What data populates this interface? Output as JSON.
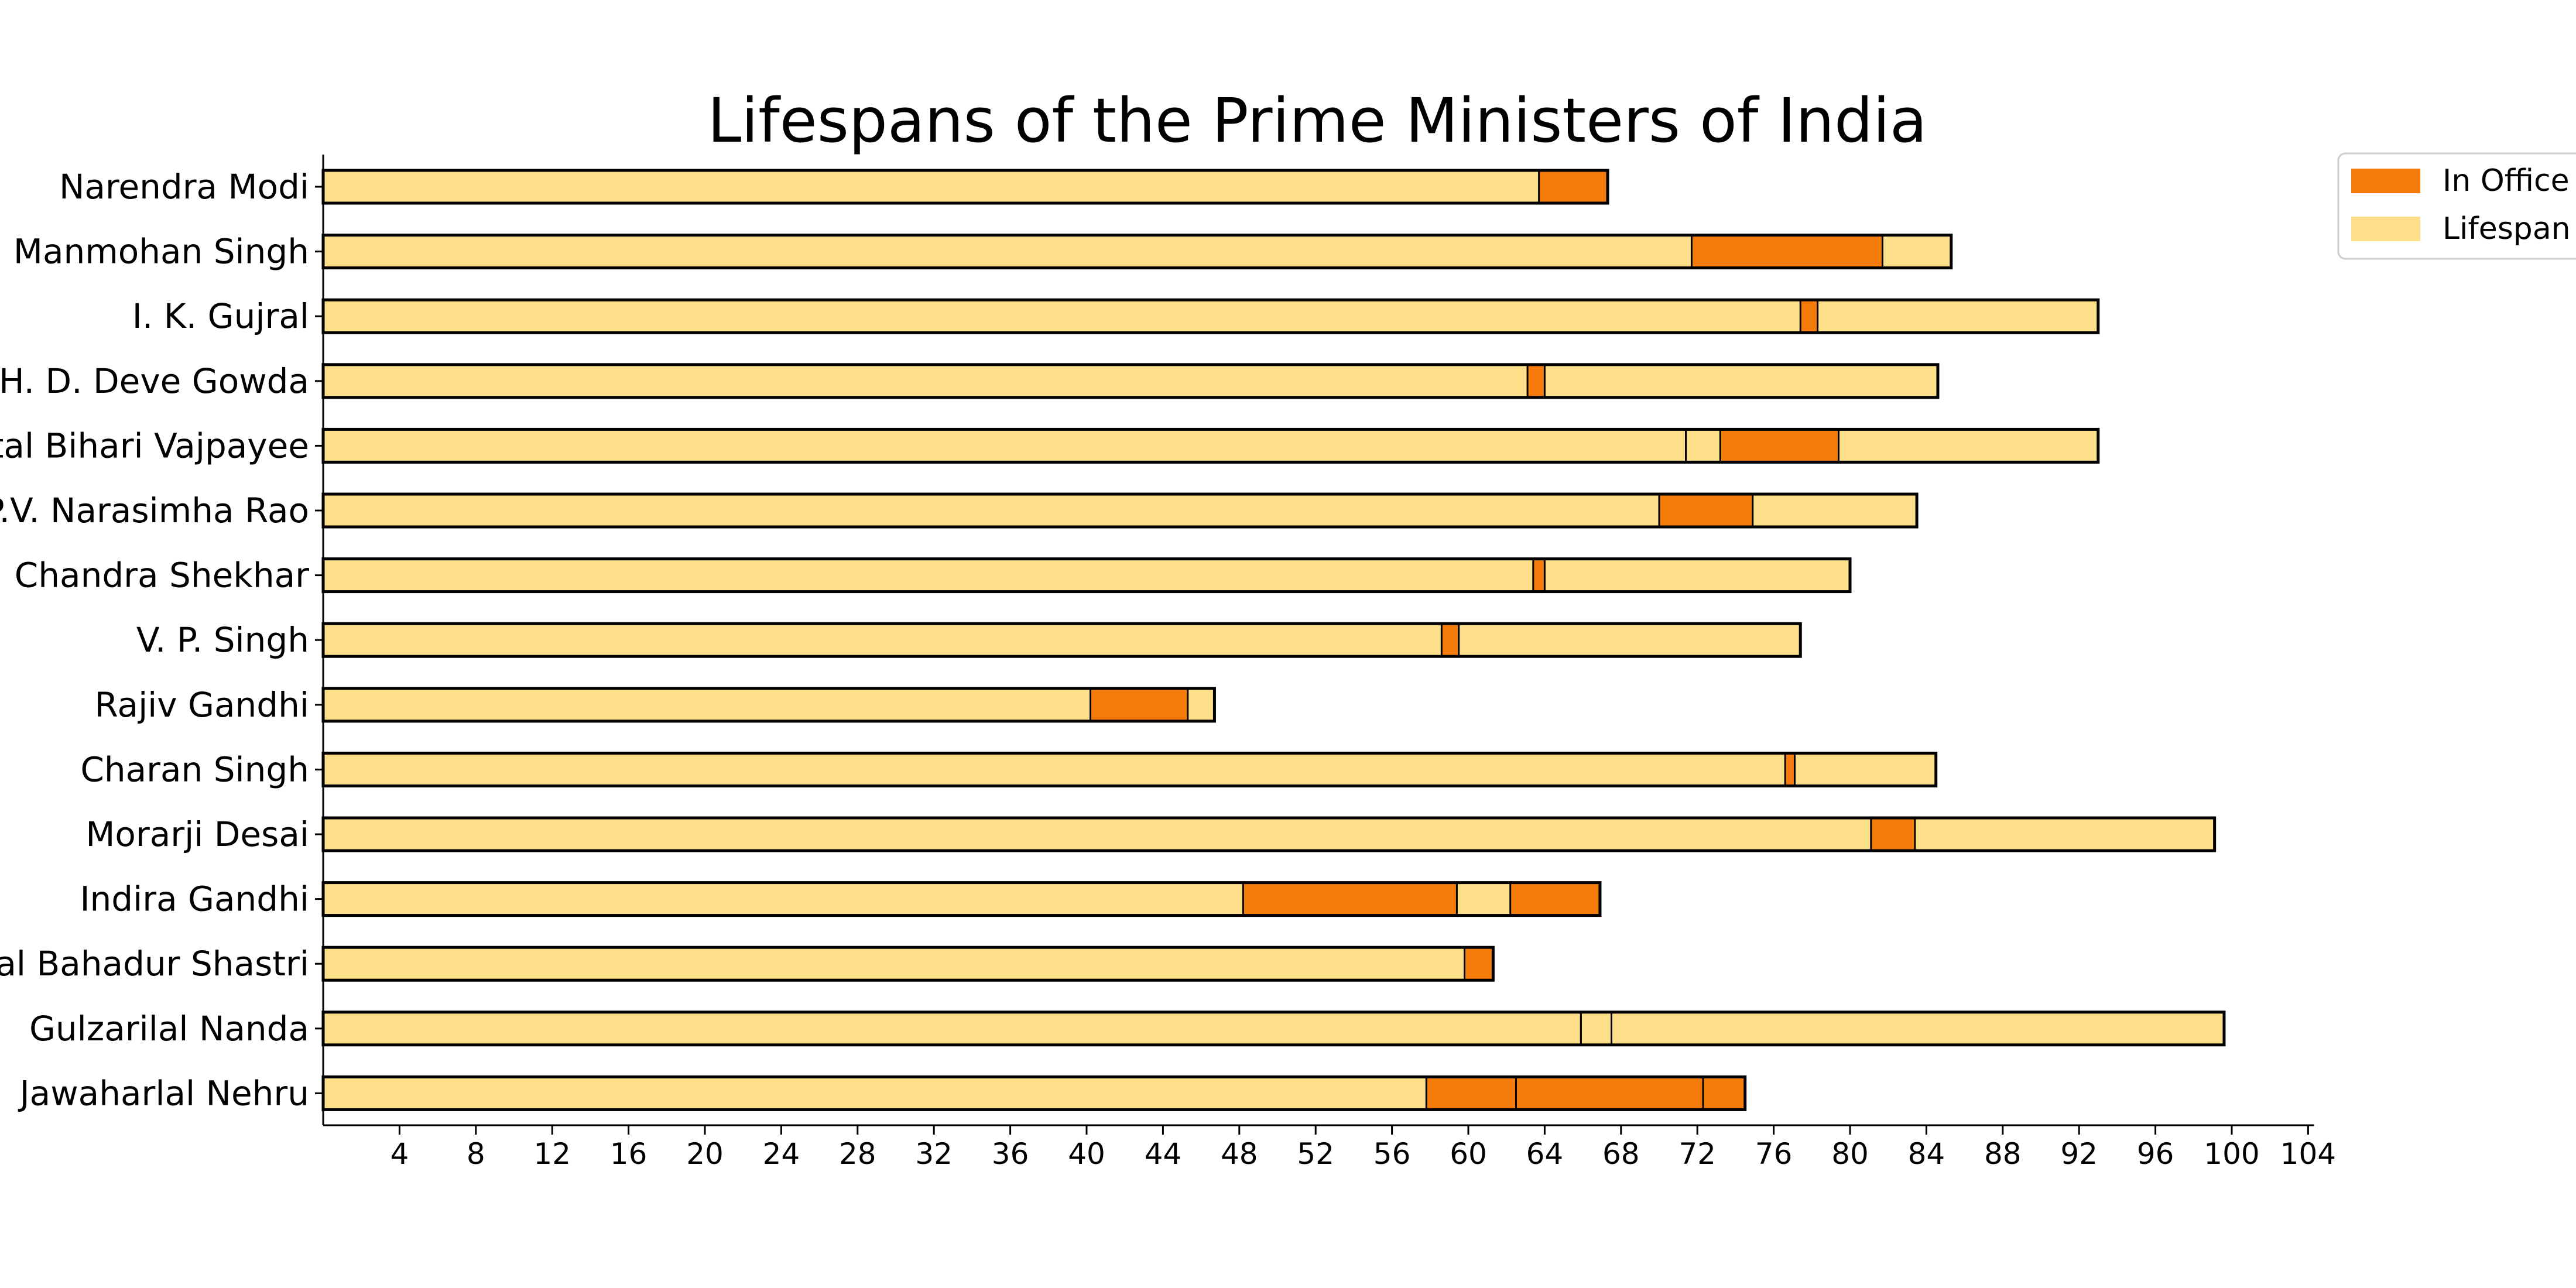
{
  "chart_data": {
    "type": "bar",
    "orientation": "horizontal",
    "title": "Lifespans of the Prime Ministers of India",
    "xlabel": "",
    "ylabel": "",
    "xlim": [
      0,
      104
    ],
    "x_ticks": [
      4,
      8,
      12,
      16,
      20,
      24,
      28,
      32,
      36,
      40,
      44,
      48,
      52,
      56,
      60,
      64,
      68,
      72,
      76,
      80,
      84,
      88,
      92,
      96,
      100,
      104
    ],
    "grid": false,
    "legend": {
      "position": "top-right",
      "entries": [
        {
          "label": "In Office",
          "color": "#F57C0B"
        },
        {
          "label": "Lifespan",
          "color": "#FFE08A"
        }
      ]
    },
    "colors": {
      "in_office": "#F57C0B",
      "lifespan": "#FFE08A",
      "edge": "#000000"
    },
    "series": [
      {
        "name": "Narendra Modi",
        "lifespan": 67.3,
        "terms": [
          [
            63.7,
            67.3
          ]
        ]
      },
      {
        "name": "Manmohan Singh",
        "lifespan": 85.3,
        "terms": [
          [
            71.7,
            81.7
          ]
        ]
      },
      {
        "name": "I. K. Gujral",
        "lifespan": 93.0,
        "terms": [
          [
            77.4,
            78.3
          ]
        ]
      },
      {
        "name": "H. D. Deve Gowda",
        "lifespan": 84.6,
        "terms": [
          [
            63.1,
            64.0
          ]
        ]
      },
      {
        "name": "Atal Bihari Vajpayee",
        "lifespan": 93.0,
        "terms": [
          [
            71.4,
            71.4
          ],
          [
            73.2,
            79.4
          ]
        ]
      },
      {
        "name": "P.V. Narasimha Rao",
        "lifespan": 83.5,
        "terms": [
          [
            70.0,
            74.9
          ]
        ]
      },
      {
        "name": "Chandra Shekhar",
        "lifespan": 80.0,
        "terms": [
          [
            63.4,
            64.0
          ]
        ]
      },
      {
        "name": "V. P. Singh",
        "lifespan": 77.4,
        "terms": [
          [
            58.6,
            59.5
          ]
        ]
      },
      {
        "name": "Rajiv Gandhi",
        "lifespan": 46.7,
        "terms": [
          [
            40.2,
            45.3
          ]
        ]
      },
      {
        "name": "Charan Singh",
        "lifespan": 84.5,
        "terms": [
          [
            76.6,
            77.1
          ]
        ]
      },
      {
        "name": "Morarji Desai",
        "lifespan": 99.1,
        "terms": [
          [
            81.1,
            83.4
          ]
        ]
      },
      {
        "name": "Indira Gandhi",
        "lifespan": 66.9,
        "terms": [
          [
            48.2,
            59.4
          ],
          [
            62.2,
            66.9
          ]
        ]
      },
      {
        "name": "Lal Bahadur Shastri",
        "lifespan": 61.3,
        "terms": [
          [
            59.8,
            61.3
          ]
        ]
      },
      {
        "name": "Gulzarilal Nanda",
        "lifespan": 99.6,
        "terms": [
          [
            65.9,
            65.9
          ],
          [
            67.5,
            67.5
          ]
        ]
      },
      {
        "name": "Jawaharlal Nehru",
        "lifespan": 74.5,
        "terms": [
          [
            57.8,
            62.5
          ],
          [
            62.5,
            72.3
          ],
          [
            72.3,
            74.5
          ]
        ]
      }
    ]
  }
}
